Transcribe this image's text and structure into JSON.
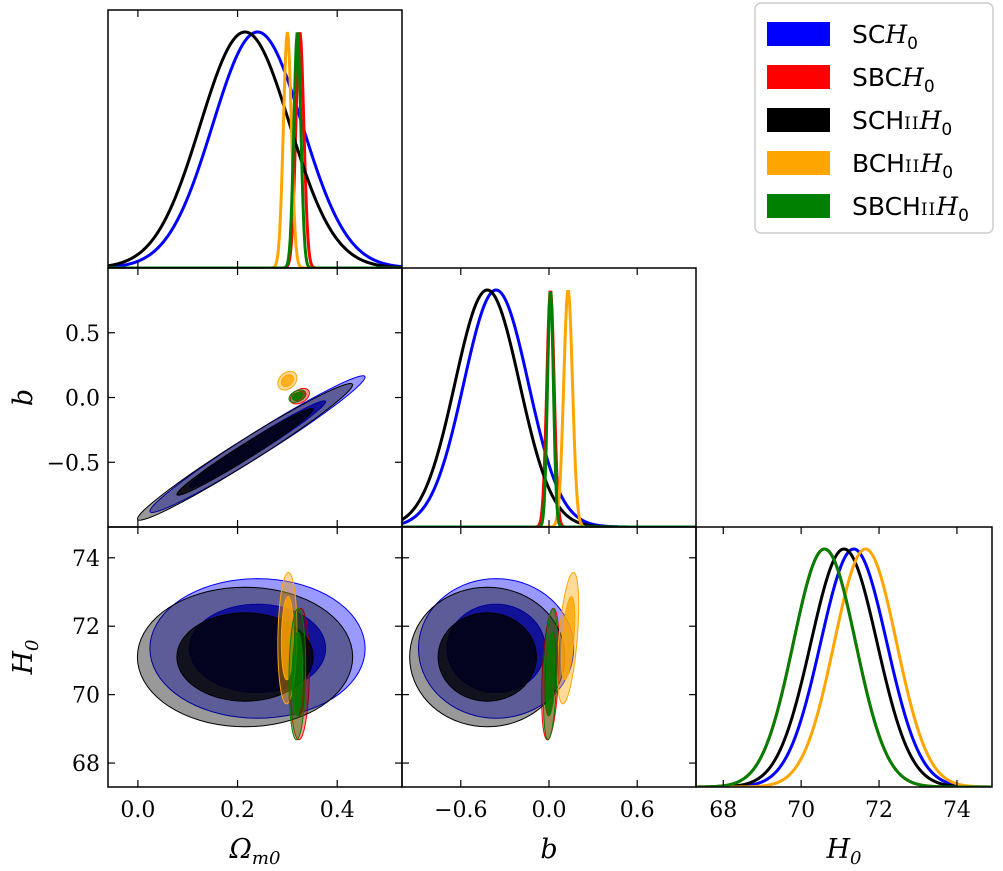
{
  "chart_data": {
    "type": "corner",
    "parameters": [
      {
        "key": "om",
        "label": "Ωm0",
        "range": [
          -0.06,
          0.53
        ],
        "ticks": [
          0.0,
          0.2,
          0.4
        ],
        "tick_labels": [
          "0.0",
          "0.2",
          "0.4"
        ]
      },
      {
        "key": "b",
        "label": "b",
        "range": [
          -1.0,
          1.0
        ],
        "ticks": [
          -0.6,
          0.0,
          0.6
        ],
        "tick_labels": [
          "−0.6",
          "0.0",
          "0.6"
        ],
        "y_ticks": [
          -0.5,
          0.0,
          0.5
        ],
        "y_tick_labels": [
          "−0.5",
          "0.0",
          "0.5"
        ]
      },
      {
        "key": "H0",
        "label": "H0",
        "range": [
          67.3,
          74.9
        ],
        "ticks": [
          68,
          70,
          72,
          74
        ],
        "tick_labels": [
          "68",
          "70",
          "72",
          "74"
        ]
      }
    ],
    "series": [
      {
        "name": "SCH0",
        "color": "#0000ff",
        "mean": {
          "om": 0.24,
          "b": -0.36,
          "H0": 71.35
        },
        "sigma": {
          "om": 0.09,
          "b": 0.22,
          "H0": 0.85
        },
        "corr_om_b": 0.98,
        "corr_om_H0": 0.0,
        "corr_b_H0": 0.0
      },
      {
        "name": "SBCH0",
        "color": "#ff0000",
        "mean": {
          "om": 0.325,
          "b": 0.01,
          "H0": 70.6
        },
        "sigma": {
          "om": 0.008,
          "b": 0.025,
          "H0": 0.8
        },
        "corr_om_b": 0.4,
        "corr_om_H0": 0.1,
        "corr_b_H0": 0.35
      },
      {
        "name": "SCHIIH0",
        "color": "#000000",
        "mean": {
          "om": 0.215,
          "b": -0.42,
          "H0": 71.1
        },
        "sigma": {
          "om": 0.09,
          "b": 0.22,
          "H0": 0.85
        },
        "corr_om_b": 0.98,
        "corr_om_H0": 0.0,
        "corr_b_H0": 0.0
      },
      {
        "name": "BCHIIH0",
        "color": "#ffa500",
        "mean": {
          "om": 0.3,
          "b": 0.13,
          "H0": 71.65
        },
        "sigma": {
          "om": 0.008,
          "b": 0.03,
          "H0": 0.8
        },
        "corr_om_b": 0.3,
        "corr_om_H0": 0.1,
        "corr_b_H0": 0.5
      },
      {
        "name": "SBCHIIH0",
        "color": "#008000",
        "mean": {
          "om": 0.32,
          "b": 0.01,
          "H0": 70.6
        },
        "sigma": {
          "om": 0.007,
          "b": 0.02,
          "H0": 0.8
        },
        "corr_om_b": 0.4,
        "corr_om_H0": 0.1,
        "corr_b_H0": 0.35
      }
    ],
    "legend": {
      "placement": "top-right",
      "entries": [
        {
          "prefix": "SC",
          "suffix": "",
          "color": "#0000ff"
        },
        {
          "prefix": "SBC",
          "suffix": "",
          "color": "#ff0000"
        },
        {
          "prefix": "SCH",
          "suffix": "II",
          "color": "#000000"
        },
        {
          "prefix": "BCH",
          "suffix": "II",
          "color": "#ffa500"
        },
        {
          "prefix": "SBCH",
          "suffix": "II",
          "color": "#008000"
        }
      ]
    },
    "grid": false
  }
}
